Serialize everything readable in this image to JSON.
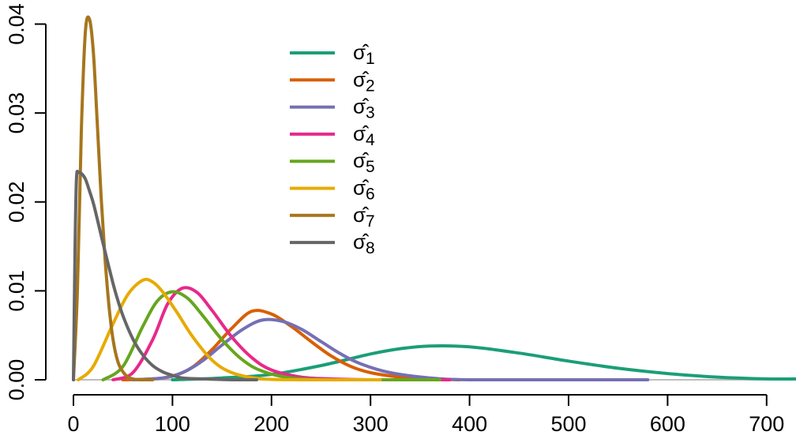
{
  "chart_data": {
    "type": "line",
    "title": "",
    "xlabel": "",
    "ylabel": "",
    "xlim": [
      0,
      730
    ],
    "ylim": [
      0,
      0.04
    ],
    "x_ticks": [
      0,
      100,
      200,
      300,
      400,
      500,
      600,
      700
    ],
    "x_tick_labels": [
      "0",
      "100",
      "200",
      "300",
      "400",
      "500",
      "600",
      "700"
    ],
    "y_ticks": [
      0,
      0.01,
      0.02,
      0.03,
      0.04
    ],
    "y_tick_labels": [
      "0.00",
      "0.01",
      "0.02",
      "0.03",
      "0.04"
    ],
    "grid": false,
    "legend_position": "top-center",
    "series": [
      {
        "name": "σ̂1",
        "color": "#1B9E77",
        "x": [
          100,
          150,
          200,
          250,
          300,
          330,
          360,
          400,
          450,
          500,
          550,
          600,
          650,
          700,
          730
        ],
        "y": [
          0,
          0.0002,
          0.0006,
          0.0016,
          0.0029,
          0.0035,
          0.0038,
          0.0037,
          0.003,
          0.0021,
          0.0013,
          0.0007,
          0.0003,
          0.0001,
          0.0001
        ]
      },
      {
        "name": "σ̂2",
        "color": "#D95F02",
        "x": [
          50,
          80,
          100,
          120,
          140,
          160,
          180,
          200,
          220,
          240,
          260,
          280,
          300,
          330,
          360,
          390
        ],
        "y": [
          0,
          0.0001,
          0.0004,
          0.0014,
          0.0034,
          0.0058,
          0.0077,
          0.0074,
          0.006,
          0.0043,
          0.0027,
          0.0015,
          0.0008,
          0.0003,
          0.0001,
          0
        ]
      },
      {
        "name": "σ̂3",
        "color": "#7570B3",
        "x": [
          60,
          90,
          110,
          130,
          150,
          170,
          190,
          210,
          230,
          250,
          270,
          290,
          320,
          360,
          400,
          500,
          580
        ],
        "y": [
          0,
          0.0002,
          0.0008,
          0.0021,
          0.0039,
          0.0056,
          0.0067,
          0.0066,
          0.0057,
          0.0043,
          0.0029,
          0.0018,
          0.0008,
          0.0002,
          0,
          0,
          0
        ]
      },
      {
        "name": "σ̂4",
        "color": "#E7298A",
        "x": [
          40,
          60,
          80,
          95,
          110,
          125,
          140,
          160,
          180,
          200,
          230,
          260,
          300,
          380
        ],
        "y": [
          0,
          0.0008,
          0.0045,
          0.0085,
          0.0103,
          0.0098,
          0.0078,
          0.0048,
          0.0025,
          0.0011,
          0.0003,
          0.0001,
          0,
          0
        ]
      },
      {
        "name": "σ̂5",
        "color": "#66A61E",
        "x": [
          30,
          50,
          70,
          85,
          100,
          115,
          130,
          150,
          170,
          190,
          220,
          260,
          310,
          370
        ],
        "y": [
          0,
          0.0015,
          0.006,
          0.0089,
          0.0099,
          0.0092,
          0.0073,
          0.0045,
          0.0023,
          0.001,
          0.0002,
          0,
          0,
          0
        ]
      },
      {
        "name": "σ̂6",
        "color": "#E6AB02",
        "x": [
          5,
          20,
          40,
          55,
          70,
          80,
          90,
          105,
          120,
          140,
          160,
          190,
          230,
          310
        ],
        "y": [
          0,
          0.0015,
          0.0063,
          0.0096,
          0.0112,
          0.011,
          0.0099,
          0.0075,
          0.0049,
          0.0022,
          0.0008,
          0.0001,
          0,
          0
        ]
      },
      {
        "name": "σ̂7",
        "color": "#A6761D",
        "x": [
          0,
          4,
          8,
          12,
          16,
          20,
          24,
          28,
          32,
          36,
          40,
          45,
          50,
          55,
          60,
          65,
          70,
          80
        ],
        "y": [
          0,
          0.01,
          0.028,
          0.039,
          0.0406,
          0.037,
          0.029,
          0.0205,
          0.0135,
          0.0082,
          0.0045,
          0.002,
          0.0009,
          0.0003,
          0.0001,
          0,
          0,
          0
        ]
      },
      {
        "name": "σ̂8",
        "color": "#666666",
        "x": [
          0,
          1.5,
          3,
          5,
          8,
          12,
          16,
          20,
          24,
          30,
          36,
          42,
          50,
          60,
          70,
          80,
          90,
          100,
          110,
          130,
          160,
          185
        ],
        "y": [
          0,
          0.014,
          0.0225,
          0.0233,
          0.0232,
          0.0226,
          0.0213,
          0.0199,
          0.0181,
          0.0153,
          0.0126,
          0.01,
          0.0072,
          0.0046,
          0.0028,
          0.0016,
          0.0009,
          0.0005,
          0.0002,
          0.0001,
          0,
          0
        ]
      }
    ]
  }
}
